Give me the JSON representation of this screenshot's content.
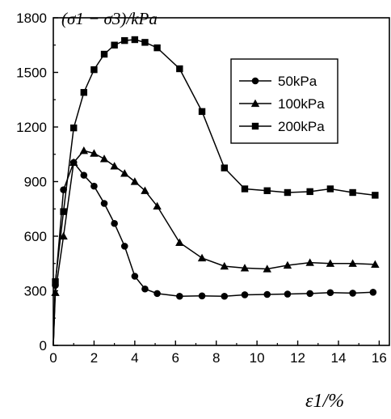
{
  "chart_data": {
    "type": "line",
    "ylabel": "(σ1 − σ3)/kPa",
    "xlabel": "ε1/%",
    "xlim": [
      0,
      16.5
    ],
    "ylim": [
      0,
      1800
    ],
    "xticks": [
      0,
      2,
      4,
      6,
      8,
      10,
      12,
      14,
      16
    ],
    "yticks": [
      0,
      300,
      600,
      900,
      1200,
      1500,
      1800
    ],
    "grid": false,
    "legend_position": "upper-right",
    "series": [
      {
        "name": "50kPa",
        "marker": "circle",
        "x": [
          0,
          0.1,
          0.5,
          1.0,
          1.5,
          2.0,
          2.5,
          3.0,
          3.5,
          4.0,
          4.5,
          5.1,
          6.2,
          7.3,
          8.4,
          9.4,
          10.5,
          11.5,
          12.6,
          13.6,
          14.7,
          15.7
        ],
        "y": [
          0,
          330,
          855,
          1005,
          935,
          875,
          780,
          670,
          545,
          380,
          310,
          285,
          270,
          272,
          270,
          278,
          280,
          282,
          285,
          290,
          287,
          292
        ]
      },
      {
        "name": "100kPa",
        "marker": "triangle",
        "x": [
          0,
          0.1,
          0.5,
          1.0,
          1.5,
          2.0,
          2.5,
          3.0,
          3.5,
          4.0,
          4.5,
          5.1,
          6.2,
          7.3,
          8.4,
          9.4,
          10.5,
          11.5,
          12.6,
          13.6,
          14.7,
          15.8
        ],
        "y": [
          0,
          290,
          600,
          1005,
          1070,
          1055,
          1025,
          985,
          945,
          900,
          850,
          765,
          565,
          480,
          435,
          425,
          420,
          440,
          455,
          450,
          450,
          445
        ]
      },
      {
        "name": "200kPa",
        "marker": "square",
        "x": [
          0,
          0.1,
          0.5,
          1.0,
          1.5,
          2.0,
          2.5,
          3.0,
          3.5,
          4.0,
          4.5,
          5.1,
          6.2,
          7.3,
          8.4,
          9.4,
          10.5,
          11.5,
          12.6,
          13.6,
          14.7,
          15.8
        ],
        "y": [
          0,
          350,
          735,
          1195,
          1390,
          1515,
          1600,
          1650,
          1675,
          1680,
          1665,
          1635,
          1520,
          1285,
          975,
          860,
          850,
          840,
          845,
          860,
          840,
          825
        ]
      }
    ]
  }
}
